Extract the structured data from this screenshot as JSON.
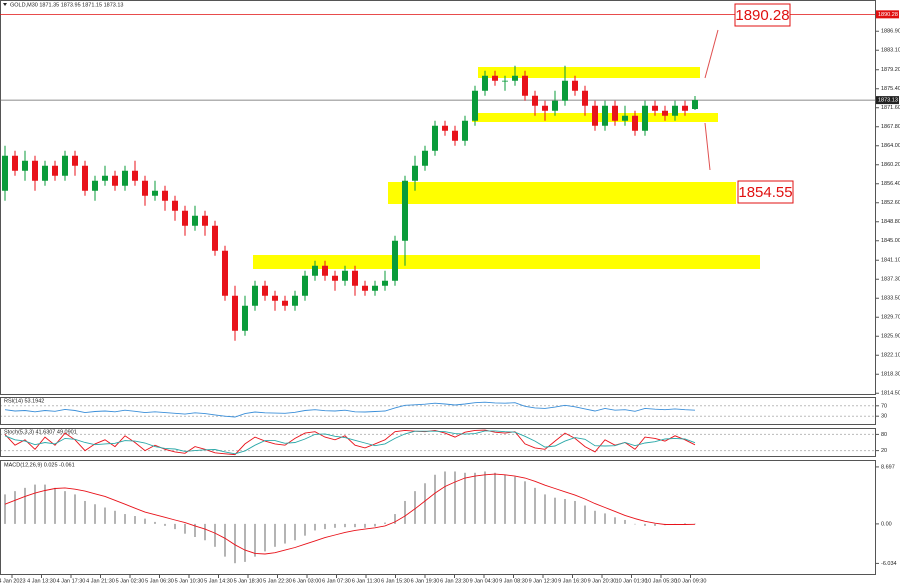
{
  "chart_data": [
    {
      "type": "candlestick",
      "title": "GOLD,M30  1871.35 1873.95 1871.15 1873.13",
      "up_color": "#0a9b3a",
      "down_color": "#e8121a",
      "open": [
        1855,
        1862,
        1859,
        1861,
        1857,
        1860,
        1858,
        1862,
        1860,
        1855,
        1857,
        1858,
        1856,
        1859,
        1857,
        1854,
        1855,
        1853,
        1851,
        1848,
        1850,
        1848,
        1843,
        1834,
        1827,
        1832,
        1836,
        1834,
        1833,
        1832,
        1834,
        1838,
        1840,
        1838,
        1837,
        1839,
        1836,
        1835,
        1836,
        1837,
        1845,
        1857,
        1860,
        1863,
        1868,
        1867,
        1865,
        1869,
        1875,
        1878,
        1877,
        1877,
        1878,
        1874,
        1872,
        1871,
        1873,
        1877,
        1875,
        1872,
        1868,
        1872,
        1869,
        1870,
        1867,
        1872,
        1871,
        1870,
        1872,
        1871.35
      ],
      "high": [
        1864,
        1863,
        1863,
        1862,
        1861,
        1861,
        1863,
        1863,
        1861,
        1858,
        1860,
        1859,
        1860,
        1861,
        1858,
        1857,
        1856,
        1854,
        1852,
        1852,
        1851,
        1849,
        1844,
        1836,
        1834,
        1837,
        1837,
        1835,
        1834,
        1835,
        1839,
        1841,
        1841,
        1839,
        1840,
        1840,
        1837,
        1837,
        1839,
        1846,
        1858,
        1862,
        1864,
        1869,
        1869,
        1868,
        1870,
        1876,
        1879,
        1879,
        1878,
        1880,
        1879,
        1875,
        1873,
        1875,
        1880,
        1878,
        1876,
        1873,
        1873,
        1873,
        1872,
        1871,
        1873,
        1873,
        1872,
        1873,
        1873,
        1873.95
      ],
      "low": [
        1853,
        1858,
        1857,
        1855,
        1856,
        1857,
        1857,
        1858,
        1854,
        1853,
        1856,
        1855,
        1855,
        1856,
        1852,
        1853,
        1851,
        1849,
        1846,
        1847,
        1846,
        1842,
        1833,
        1825,
        1826,
        1831,
        1833,
        1831,
        1831,
        1831,
        1833,
        1837,
        1837,
        1835,
        1836,
        1834,
        1834,
        1834,
        1835,
        1836,
        1840,
        1855,
        1859,
        1862,
        1866,
        1864,
        1864,
        1868,
        1874,
        1876,
        1875,
        1876,
        1873,
        1870,
        1869,
        1870,
        1872,
        1874,
        1870,
        1867,
        1867,
        1868,
        1868,
        1866,
        1866,
        1870,
        1869,
        1869,
        1870,
        1871.15
      ],
      "close": [
        1862,
        1859,
        1861,
        1857,
        1860,
        1858,
        1862,
        1860,
        1855,
        1857,
        1858,
        1856,
        1859,
        1857,
        1854,
        1855,
        1853,
        1851,
        1848,
        1850,
        1848,
        1843,
        1834,
        1827,
        1832,
        1836,
        1834,
        1833,
        1832,
        1834,
        1838,
        1840,
        1838,
        1837,
        1839,
        1836,
        1835,
        1836,
        1837,
        1845,
        1857,
        1860,
        1863,
        1868,
        1867,
        1865,
        1869,
        1875,
        1878,
        1877,
        1877,
        1878,
        1874,
        1872,
        1871,
        1873,
        1877,
        1875,
        1872,
        1868,
        1872,
        1869,
        1870,
        1867,
        1872,
        1871,
        1870,
        1872,
        1871,
        1873.13
      ],
      "current_price": 1873.13,
      "zones": [
        [
          1877.55,
          1879.75
        ],
        [
          1868.75,
          1870.55
        ],
        [
          1852.35,
          1856.75
        ],
        [
          1839.35,
          1842.15
        ]
      ],
      "zone_color": "#ffff00",
      "annotations": [
        {
          "text": "1890.28",
          "value": 1890.28
        },
        {
          "text": "1854.55",
          "value": 1854.55
        }
      ],
      "annotation_color": "#e01010",
      "xlim": [
        -0.5,
        87
      ],
      "ylim": [
        1814.15,
        1893.15
      ],
      "grid": false,
      "yticks": [
        {
          "value": 1886.9,
          "label": "1886.90"
        },
        {
          "value": 1883.1,
          "label": "1883.10"
        },
        {
          "value": 1879.2,
          "label": "1879.20"
        },
        {
          "value": 1875.4,
          "label": "1875.40"
        },
        {
          "value": 1871.6,
          "label": "1871.60"
        },
        {
          "value": 1867.8,
          "label": "1867.80"
        },
        {
          "value": 1864,
          "label": "1864.00"
        },
        {
          "value": 1860.2,
          "label": "1860.20"
        },
        {
          "value": 1856.4,
          "label": "1856.40"
        },
        {
          "value": 1852.6,
          "label": "1852.60"
        },
        {
          "value": 1848.8,
          "label": "1848.80"
        },
        {
          "value": 1845,
          "label": "1845.00"
        },
        {
          "value": 1841.1,
          "label": "1841.10"
        },
        {
          "value": 1837.3,
          "label": "1837.30"
        },
        {
          "value": 1833.5,
          "label": "1833.50"
        },
        {
          "value": 1829.7,
          "label": "1829.70"
        },
        {
          "value": 1825.9,
          "label": "1825.90"
        },
        {
          "value": 1822.1,
          "label": "1822.10"
        },
        {
          "value": 1818.3,
          "label": "1818.30"
        },
        {
          "value": 1814.5,
          "label": "1814.50"
        }
      ],
      "xticks": [
        {
          "value": 0.7,
          "label": "4 Jan 2023"
        },
        {
          "value": 3.65,
          "label": "4 Jan 13:30"
        },
        {
          "value": 6.6,
          "label": "4 Jan 17:30"
        },
        {
          "value": 9.55,
          "label": "4 Jan 21:30"
        },
        {
          "value": 12.5,
          "label": "5 Jan 02:30"
        },
        {
          "value": 15.45,
          "label": "5 Jan 06:30"
        },
        {
          "value": 18.4,
          "label": "5 Jan 10:30"
        },
        {
          "value": 21.35,
          "label": "5 Jan 14:30"
        },
        {
          "value": 24.3,
          "label": "5 Jan 18:30"
        },
        {
          "value": 27.25,
          "label": "5 Jan 22:30"
        },
        {
          "value": 30.2,
          "label": "6 Jan 03:00"
        },
        {
          "value": 33.15,
          "label": "6 Jan 07:30"
        },
        {
          "value": 36.1,
          "label": "6 Jan 11:30"
        },
        {
          "value": 39.05,
          "label": "6 Jan 15:30"
        },
        {
          "value": 42,
          "label": "6 Jan 19:30"
        },
        {
          "value": 44.95,
          "label": "6 Jan 23:30"
        },
        {
          "value": 47.9,
          "label": "9 Jan 04:30"
        },
        {
          "value": 50.85,
          "label": "9 Jan 08:30"
        },
        {
          "value": 53.8,
          "label": "9 Jan 12:30"
        },
        {
          "value": 56.75,
          "label": "9 Jan 16:30"
        },
        {
          "value": 59.7,
          "label": "9 Jan 20:30"
        },
        {
          "value": 62.65,
          "label": "10 Jan 01:30"
        },
        {
          "value": 65.6,
          "label": "10 Jan 05:30"
        },
        {
          "value": 68.55,
          "label": "10 Jan 09:30"
        }
      ]
    },
    {
      "type": "line",
      "title": "RSI(14) 53.1942",
      "ylim": [
        0,
        100
      ],
      "yticks": [
        30,
        70
      ],
      "grid": true,
      "series": [
        {
          "color": "#3b8fd9",
          "values": [
            55,
            50,
            52,
            47,
            52,
            49,
            56,
            52,
            44,
            48,
            50,
            47,
            53,
            49,
            44,
            47,
            44,
            41,
            38,
            43,
            40,
            35,
            30,
            27,
            40,
            46,
            43,
            42,
            41,
            45,
            52,
            55,
            51,
            50,
            53,
            47,
            46,
            48,
            50,
            62,
            72,
            74,
            76,
            80,
            77,
            73,
            77,
            82,
            84,
            81,
            80,
            82,
            68,
            62,
            60,
            65,
            72,
            66,
            58,
            50,
            60,
            53,
            55,
            49,
            60,
            57,
            55,
            58,
            55,
            53.1942
          ]
        }
      ]
    },
    {
      "type": "line",
      "title": "Stoch(5,3,3) 41.6307 49.0901",
      "ylim": [
        0,
        100
      ],
      "yticks": [
        20,
        80
      ],
      "grid": true,
      "series": [
        {
          "color": "#e8121a",
          "values": [
            80,
            40,
            60,
            25,
            70,
            40,
            85,
            60,
            20,
            45,
            60,
            35,
            75,
            50,
            20,
            40,
            25,
            15,
            10,
            35,
            25,
            12,
            8,
            5,
            45,
            70,
            55,
            45,
            40,
            65,
            85,
            90,
            70,
            60,
            75,
            40,
            30,
            45,
            60,
            90,
            95,
            92,
            90,
            95,
            85,
            70,
            88,
            95,
            96,
            88,
            85,
            90,
            45,
            30,
            25,
            55,
            85,
            65,
            35,
            15,
            60,
            40,
            50,
            25,
            70,
            65,
            55,
            75,
            60,
            41.6307
          ]
        },
        {
          "color": "#2aa8a8",
          "values": [
            75,
            60,
            55,
            42,
            50,
            45,
            65,
            62,
            50,
            42,
            45,
            47,
            57,
            55,
            48,
            35,
            28,
            26,
            17,
            20,
            23,
            24,
            15,
            8,
            19,
            40,
            57,
            57,
            47,
            50,
            63,
            80,
            82,
            73,
            68,
            58,
            48,
            38,
            45,
            65,
            82,
            92,
            92,
            92,
            90,
            83,
            81,
            83,
            93,
            93,
            90,
            88,
            73,
            55,
            33,
            37,
            55,
            68,
            62,
            38,
            37,
            38,
            50,
            38,
            48,
            53,
            63,
            65,
            63,
            49.0901
          ]
        }
      ]
    },
    {
      "type": "bar",
      "title": "MACD(12,26,9) 0.025 -0.061",
      "ylim": [
        -7.65,
        9.6
      ],
      "grid": false,
      "yticks": [
        8.697,
        {
          "value": 0,
          "label": "0.00"
        },
        -6.034
      ],
      "series": [
        {
          "type": "bar",
          "color": "#b4b4b4",
          "values": [
            4.5,
            5,
            5.5,
            6,
            6,
            5.5,
            5,
            4.5,
            3.5,
            3,
            2.5,
            2,
            1.5,
            1.2,
            0.8,
            0.3,
            -0.3,
            -0.8,
            -1.5,
            -2,
            -2.5,
            -3.5,
            -5,
            -6,
            -5.8,
            -5,
            -4.2,
            -3.5,
            -3,
            -2.5,
            -1.8,
            -1,
            -0.8,
            -0.6,
            -0.5,
            -0.5,
            -0.6,
            -0.4,
            0.2,
            1.5,
            3.5,
            5,
            6.2,
            7.5,
            8,
            8,
            7.8,
            7.8,
            8,
            7.8,
            7.5,
            7.2,
            6.5,
            5.5,
            4.5,
            4,
            3.8,
            3.5,
            2.8,
            2,
            1.6,
            1,
            0.6,
            0,
            -0.3,
            -0.3,
            -0.2,
            0,
            0.1,
            0.025
          ]
        },
        {
          "type": "line",
          "color": "#e8121a",
          "values": [
            3,
            3.6,
            4.2,
            4.7,
            5.1,
            5.4,
            5.5,
            5.3,
            5,
            4.6,
            4.2,
            3.6,
            3,
            2.4,
            1.8,
            1.4,
            1,
            0.6,
            0.2,
            -0.3,
            -0.8,
            -1.4,
            -2.2,
            -3.2,
            -4,
            -4.5,
            -4.6,
            -4.4,
            -4,
            -3.6,
            -3.1,
            -2.6,
            -2.1,
            -1.7,
            -1.3,
            -1,
            -0.8,
            -0.6,
            -0.3,
            0.3,
            1.2,
            2.3,
            3.5,
            4.7,
            5.7,
            6.4,
            7,
            7.3,
            7.5,
            7.6,
            7.5,
            7.3,
            7,
            6.5,
            5.9,
            5.4,
            4.9,
            4.4,
            3.8,
            3.1,
            2.5,
            1.9,
            1.3,
            0.8,
            0.4,
            0.1,
            -0.1,
            -0.1,
            -0.1,
            -0.061
          ]
        }
      ]
    }
  ]
}
